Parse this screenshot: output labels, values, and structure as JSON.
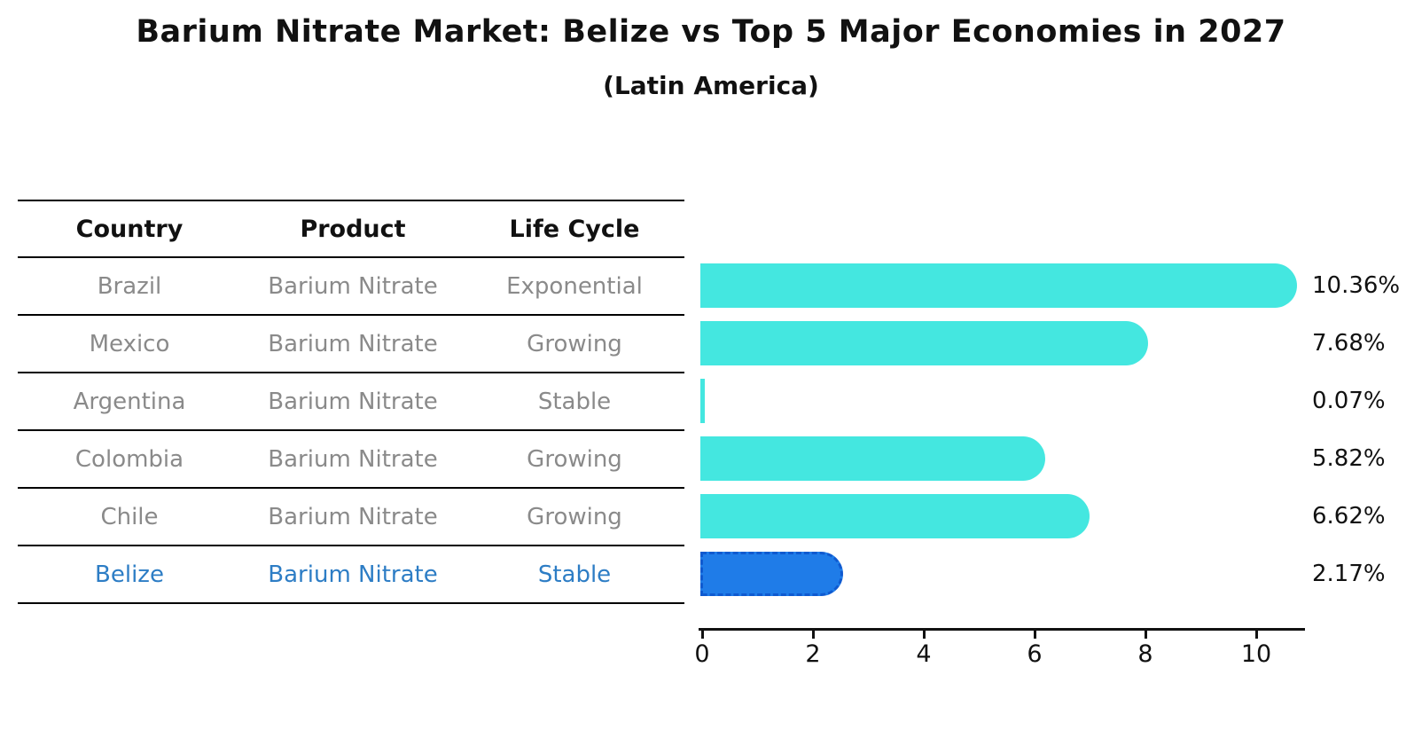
{
  "title": "Barium Nitrate Market: Belize vs Top 5 Major Economies in 2027",
  "subtitle": "(Latin America)",
  "table": {
    "headers": [
      "Country",
      "Product",
      "Life Cycle"
    ],
    "rows": [
      {
        "country": "Brazil",
        "product": "Barium Nitrate",
        "life_cycle": "Exponential",
        "highlight": false
      },
      {
        "country": "Mexico",
        "product": "Barium Nitrate",
        "life_cycle": "Growing",
        "highlight": false
      },
      {
        "country": "Argentina",
        "product": "Barium Nitrate",
        "life_cycle": "Stable",
        "highlight": false
      },
      {
        "country": "Colombia",
        "product": "Barium Nitrate",
        "life_cycle": "Growing",
        "highlight": false
      },
      {
        "country": "Chile",
        "product": "Barium Nitrate",
        "life_cycle": "Growing",
        "highlight": false
      },
      {
        "country": "Belize",
        "product": "Barium Nitrate",
        "life_cycle": "Stable",
        "highlight": true
      }
    ]
  },
  "chart_data": {
    "type": "bar",
    "orientation": "horizontal",
    "categories": [
      "Brazil",
      "Mexico",
      "Argentina",
      "Colombia",
      "Chile",
      "Belize"
    ],
    "values": [
      10.36,
      7.68,
      0.07,
      5.82,
      6.62,
      2.17
    ],
    "value_labels": [
      "10.36%",
      "7.68%",
      "0.07%",
      "5.82%",
      "6.62%",
      "2.17%"
    ],
    "highlight_index": 5,
    "x_ticks": [
      "0",
      "2",
      "4",
      "6",
      "8",
      "10"
    ],
    "x_tick_values": [
      0,
      2,
      4,
      6,
      8,
      10
    ],
    "xlim": [
      0,
      11
    ],
    "grid": false,
    "legend": false,
    "bar_color": "#44e7e0",
    "highlight_bar_color": "#1f7ce8",
    "highlight_border_color": "#0f5ad0",
    "highlight_text_color": "#2d7dc5",
    "cell_text_color": "#8a8a8a",
    "axis_color": "#111111"
  }
}
